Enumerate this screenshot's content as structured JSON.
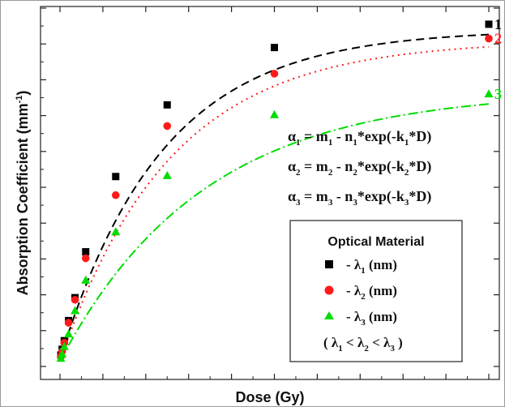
{
  "chart_data": {
    "type": "scatter",
    "title": "",
    "xlabel": "Dose (Gy)",
    "ylabel": "Absorption Coefficient",
    "ylabel_unit": "(mm",
    "ylabel_unit_sup": "-1",
    "ylabel_unit_close": ")",
    "xlim": [
      0,
      10
    ],
    "ylim": [
      0,
      10
    ],
    "tick_labels_shown": false,
    "grid": false,
    "legend_placement": "bottom-right",
    "equations": [
      {
        "lhs": "α",
        "sub1": "1",
        "mid1": " = m",
        "sub2": "1",
        "mid2": " - n",
        "sub3": "1",
        "mid3": "*exp(-k",
        "sub4": "1",
        "tail": "*D)"
      },
      {
        "lhs": "α",
        "sub1": "2",
        "mid1": " = m",
        "sub2": "2",
        "mid2": " - n",
        "sub3": "2",
        "mid3": "*exp(-k",
        "sub4": "2",
        "tail": "*D)"
      },
      {
        "lhs": "α",
        "sub1": "3",
        "mid1": " = m",
        "sub2": "3",
        "mid2": " - n",
        "sub3": "3",
        "mid3": "*exp(-k",
        "sub4": "3",
        "tail": "*D)"
      }
    ],
    "legend": {
      "title": "Optical Material",
      "entries": [
        {
          "prefix": "- λ",
          "sub": "1",
          "suffix": " (nm)"
        },
        {
          "prefix": "- λ",
          "sub": "2",
          "suffix": " (nm)"
        },
        {
          "prefix": "- λ",
          "sub": "3",
          "suffix": " (nm)"
        }
      ],
      "note": {
        "open": "( λ",
        "s1": "1",
        "lt1": " < λ",
        "s2": "2",
        "lt2": " < λ",
        "s3": "3",
        "close": " )"
      }
    },
    "series": [
      {
        "label": "1",
        "marker": "square",
        "color": "#000000",
        "dash": "10,6",
        "m": 9.4,
        "n": 9.2,
        "k": 0.42,
        "x": [
          0.02,
          0.05,
          0.1,
          0.2,
          0.35,
          0.6,
          1.3,
          2.5,
          5.0,
          10.0
        ],
        "y": [
          0.32,
          0.48,
          0.72,
          1.28,
          1.92,
          3.2,
          5.3,
          7.3,
          8.9,
          9.55
        ]
      },
      {
        "label": "2",
        "marker": "circle",
        "color": "#ff1a1a",
        "dash": "2,5",
        "m": 9.1,
        "n": 8.95,
        "k": 0.39,
        "x": [
          0.02,
          0.05,
          0.1,
          0.2,
          0.35,
          0.6,
          1.3,
          2.5,
          5.0,
          10.0
        ],
        "y": [
          0.28,
          0.42,
          0.66,
          1.22,
          1.86,
          3.02,
          4.78,
          6.71,
          8.17,
          9.15
        ]
      },
      {
        "label": "3",
        "marker": "triangle",
        "color": "#00dd00",
        "dash": "12,4,2,4",
        "m": 7.7,
        "n": 7.55,
        "k": 0.3,
        "x": [
          0.02,
          0.05,
          0.1,
          0.2,
          0.35,
          0.6,
          1.3,
          2.5,
          5.0,
          10.0
        ],
        "y": [
          0.22,
          0.34,
          0.55,
          0.9,
          1.55,
          2.4,
          3.75,
          5.32,
          7.02,
          7.6
        ]
      }
    ]
  }
}
